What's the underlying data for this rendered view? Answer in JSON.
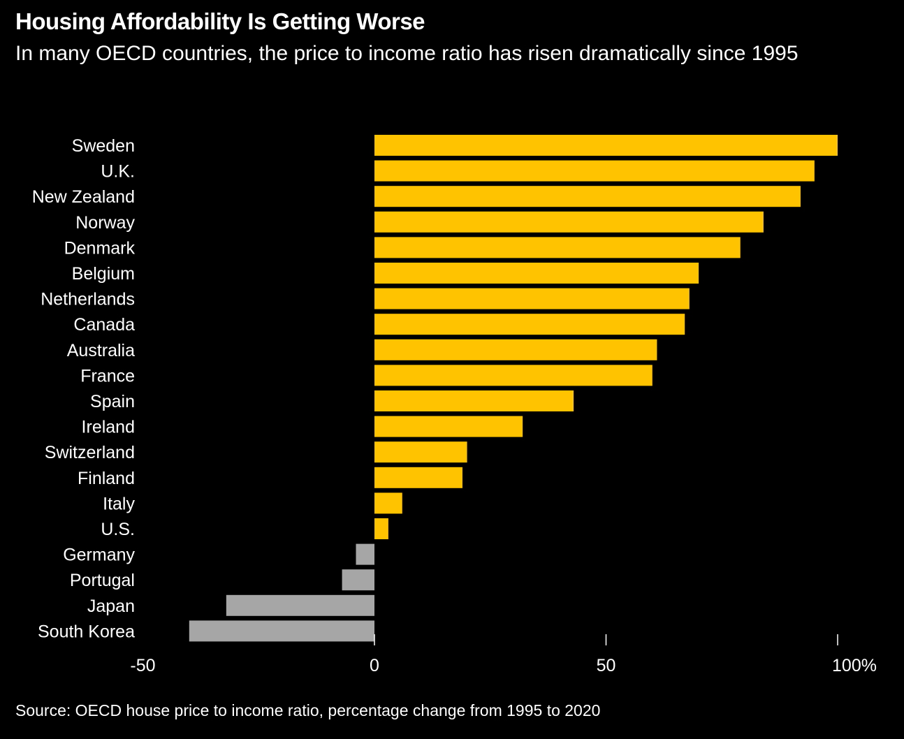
{
  "header": {
    "title": "Housing Affordability Is Getting Worse",
    "subtitle": "In many OECD countries, the price to income ratio has risen dramatically since 1995"
  },
  "footer": {
    "source": "Source: OECD house price to income ratio, percentage change from 1995 to 2020"
  },
  "colors": {
    "positive": "#FFC300",
    "negative": "#A6A6A6",
    "background": "#000000",
    "text": "#FFFFFF"
  },
  "chart_data": {
    "type": "bar",
    "orientation": "horizontal",
    "categories": [
      "Sweden",
      "U.K.",
      "New Zealand",
      "Norway",
      "Denmark",
      "Belgium",
      "Netherlands",
      "Canada",
      "Australia",
      "France",
      "Spain",
      "Ireland",
      "Switzerland",
      "Finland",
      "Italy",
      "U.S.",
      "Germany",
      "Portugal",
      "Japan",
      "South Korea"
    ],
    "values": [
      100,
      95,
      92,
      84,
      79,
      70,
      68,
      67,
      61,
      60,
      43,
      32,
      20,
      19,
      6,
      3,
      -4,
      -7,
      -32,
      -40
    ],
    "xlim": [
      -50,
      100
    ],
    "xticks": [
      -50,
      0,
      50,
      100
    ],
    "xtick_labels": [
      "-50",
      "0",
      "50",
      "100%"
    ],
    "grid": false,
    "legend": "none",
    "title": "Housing Affordability Is Getting Worse",
    "subtitle": "In many OECD countries, the price to income ratio has risen dramatically since 1995"
  }
}
